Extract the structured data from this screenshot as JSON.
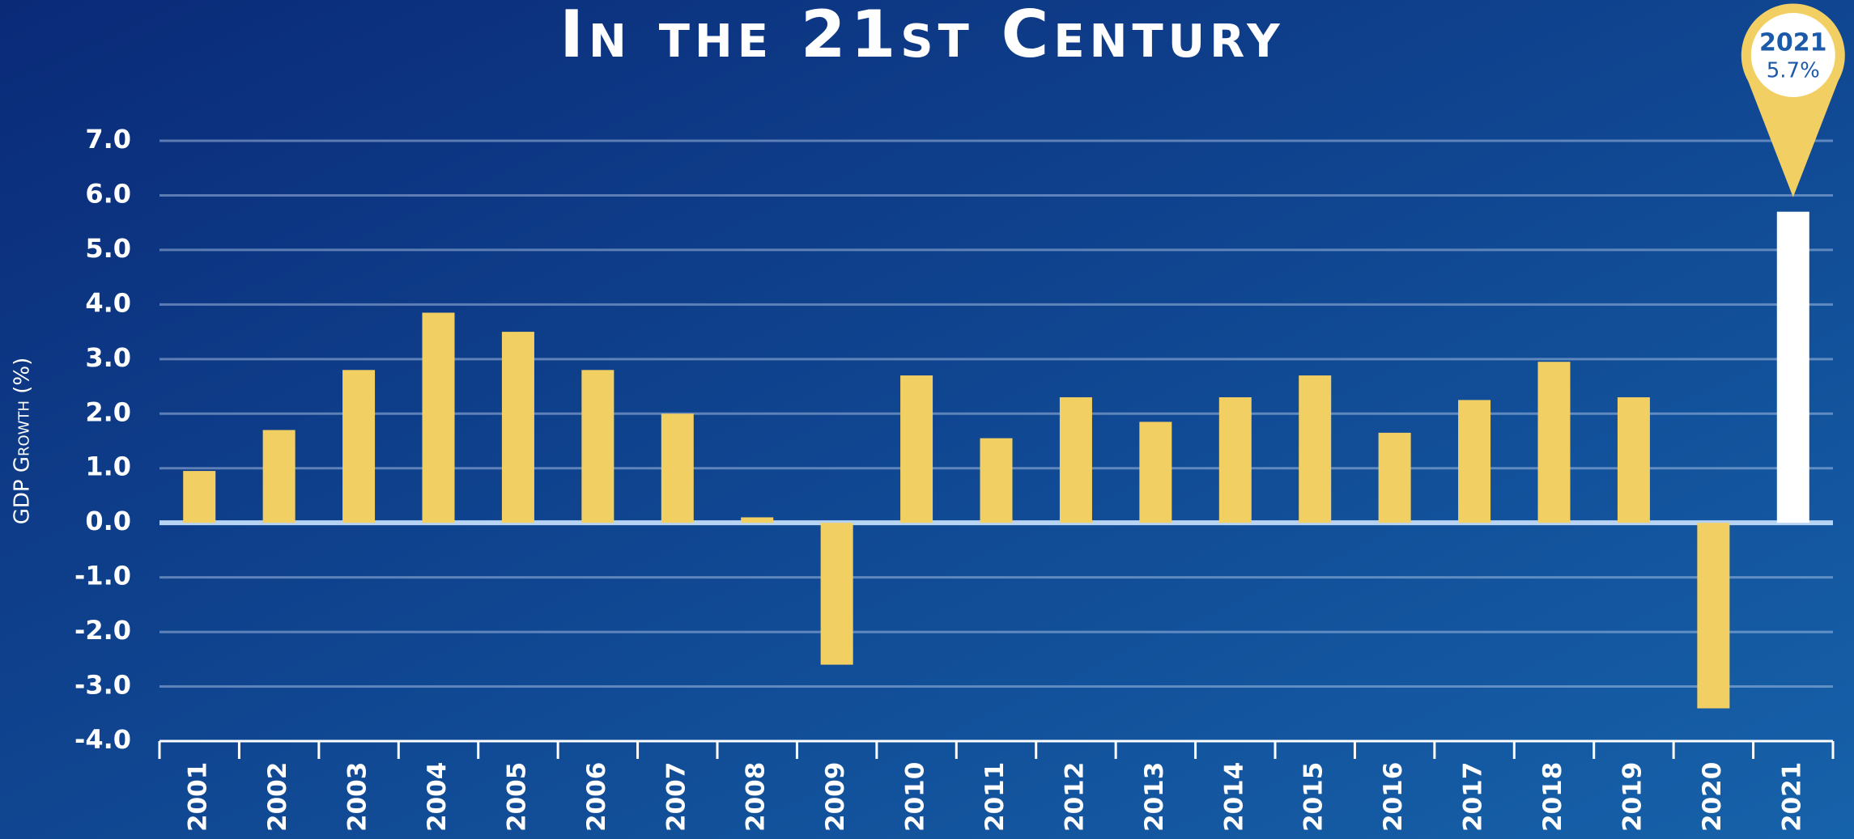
{
  "chart_data": {
    "type": "bar",
    "title": "In the 21st Century",
    "y_label": "GDP Growth (%)",
    "categories": [
      "2001",
      "2002",
      "2003",
      "2004",
      "2005",
      "2006",
      "2007",
      "2008",
      "2009",
      "2010",
      "2011",
      "2012",
      "2013",
      "2014",
      "2015",
      "2016",
      "2017",
      "2018",
      "2019",
      "2020",
      "2021"
    ],
    "values": [
      0.95,
      1.7,
      2.8,
      3.85,
      3.5,
      2.8,
      2.0,
      0.1,
      -2.6,
      2.7,
      1.55,
      2.3,
      1.85,
      2.3,
      2.7,
      1.65,
      2.25,
      2.95,
      2.3,
      -3.4,
      5.7
    ],
    "value_labels": [
      null,
      null,
      null,
      null,
      null,
      null,
      null,
      null,
      null,
      null,
      null,
      null,
      null,
      null,
      null,
      null,
      null,
      null,
      null,
      null,
      "5.7%"
    ],
    "colors": [
      "#f2cf62",
      "#f2cf62",
      "#f2cf62",
      "#f2cf62",
      "#f2cf62",
      "#f2cf62",
      "#f2cf62",
      "#f2cf62",
      "#f2cf62",
      "#f2cf62",
      "#f2cf62",
      "#f2cf62",
      "#f2cf62",
      "#f2cf62",
      "#f2cf62",
      "#f2cf62",
      "#f2cf62",
      "#f2cf62",
      "#f2cf62",
      "#f2cf62",
      "#ffffff"
    ],
    "ylim": [
      -4,
      7
    ],
    "yticks": [
      {
        "value": 7,
        "label": "7.0"
      },
      {
        "value": 6,
        "label": "6.0"
      },
      {
        "value": 5,
        "label": "5.0"
      },
      {
        "value": 4,
        "label": "4.0"
      },
      {
        "value": 3,
        "label": "3.0"
      },
      {
        "value": 2,
        "label": "2.0"
      },
      {
        "value": 1,
        "label": "1.0"
      },
      {
        "value": 0,
        "label": "0.0"
      },
      {
        "value": -1,
        "label": "-1.0"
      },
      {
        "value": -2,
        "label": "-2.0"
      },
      {
        "value": -3,
        "label": "-3.0"
      },
      {
        "value": -4,
        "label": "-4.0"
      }
    ],
    "grid": true
  }
}
